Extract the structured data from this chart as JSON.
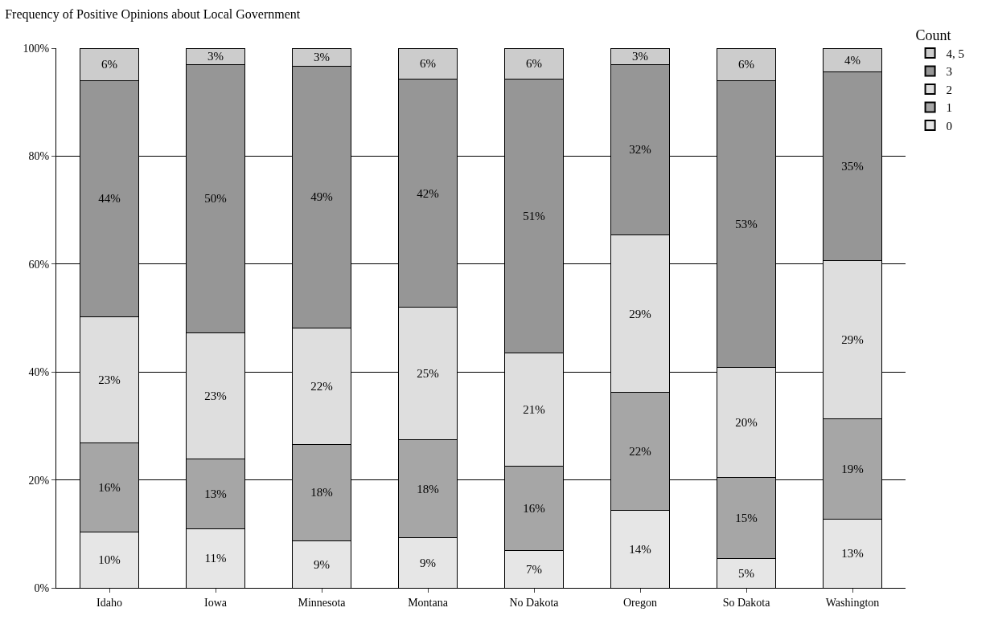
{
  "chart_data": {
    "type": "bar",
    "stacked": true,
    "title": "Frequency of Positive Opinions about Local Government",
    "legend_title": "Count",
    "legend": "right",
    "grid": "y",
    "categories": [
      "Idaho",
      "Iowa",
      "Minnesota",
      "Montana",
      "No Dakota",
      "Oregon",
      "So Dakota",
      "Washington"
    ],
    "ylim": [
      0,
      100
    ],
    "yticks": [
      {
        "value": 0,
        "label": "0%"
      },
      {
        "value": 20,
        "label": "20%"
      },
      {
        "value": 40,
        "label": "40%"
      },
      {
        "value": 60,
        "label": "60%"
      },
      {
        "value": 80,
        "label": "80%"
      },
      {
        "value": 100,
        "label": "100%"
      }
    ],
    "series": [
      {
        "name": "0",
        "color": "#e6e6e6",
        "values": [
          10.4,
          11,
          8.7,
          9.3,
          6.9,
          14.3,
          5.5,
          12.7
        ],
        "value_labels": [
          "10%",
          "11%",
          "9%",
          "9%",
          "7%",
          "14%",
          "5%",
          "13%"
        ]
      },
      {
        "name": "1",
        "color": "#a6a6a6",
        "values": [
          16.5,
          12.9,
          17.9,
          18.1,
          15.6,
          21.9,
          14.9,
          18.6
        ],
        "value_labels": [
          "16%",
          "13%",
          "18%",
          "18%",
          "16%",
          "22%",
          "15%",
          "19%"
        ]
      },
      {
        "name": "2",
        "color": "#dedede",
        "values": [
          23.3,
          23.4,
          21.6,
          24.6,
          21.0,
          29.2,
          20.4,
          29.4
        ],
        "value_labels": [
          "23%",
          "23%",
          "22%",
          "25%",
          "21%",
          "29%",
          "20%",
          "29%"
        ]
      },
      {
        "name": "3",
        "color": "#969696",
        "values": [
          43.8,
          49.7,
          48.5,
          42.2,
          50.7,
          31.6,
          53.1,
          34.9
        ],
        "value_labels": [
          "44%",
          "50%",
          "49%",
          "42%",
          "51%",
          "32%",
          "53%",
          "35%"
        ]
      },
      {
        "name": "4, 5",
        "color": "#cccccc",
        "values": [
          6.0,
          3.0,
          3.3,
          5.8,
          5.8,
          3.0,
          6.1,
          4.4
        ],
        "value_labels": [
          "6%",
          "3%",
          "3%",
          "6%",
          "6%",
          "3%",
          "6%",
          "4%"
        ]
      }
    ]
  }
}
